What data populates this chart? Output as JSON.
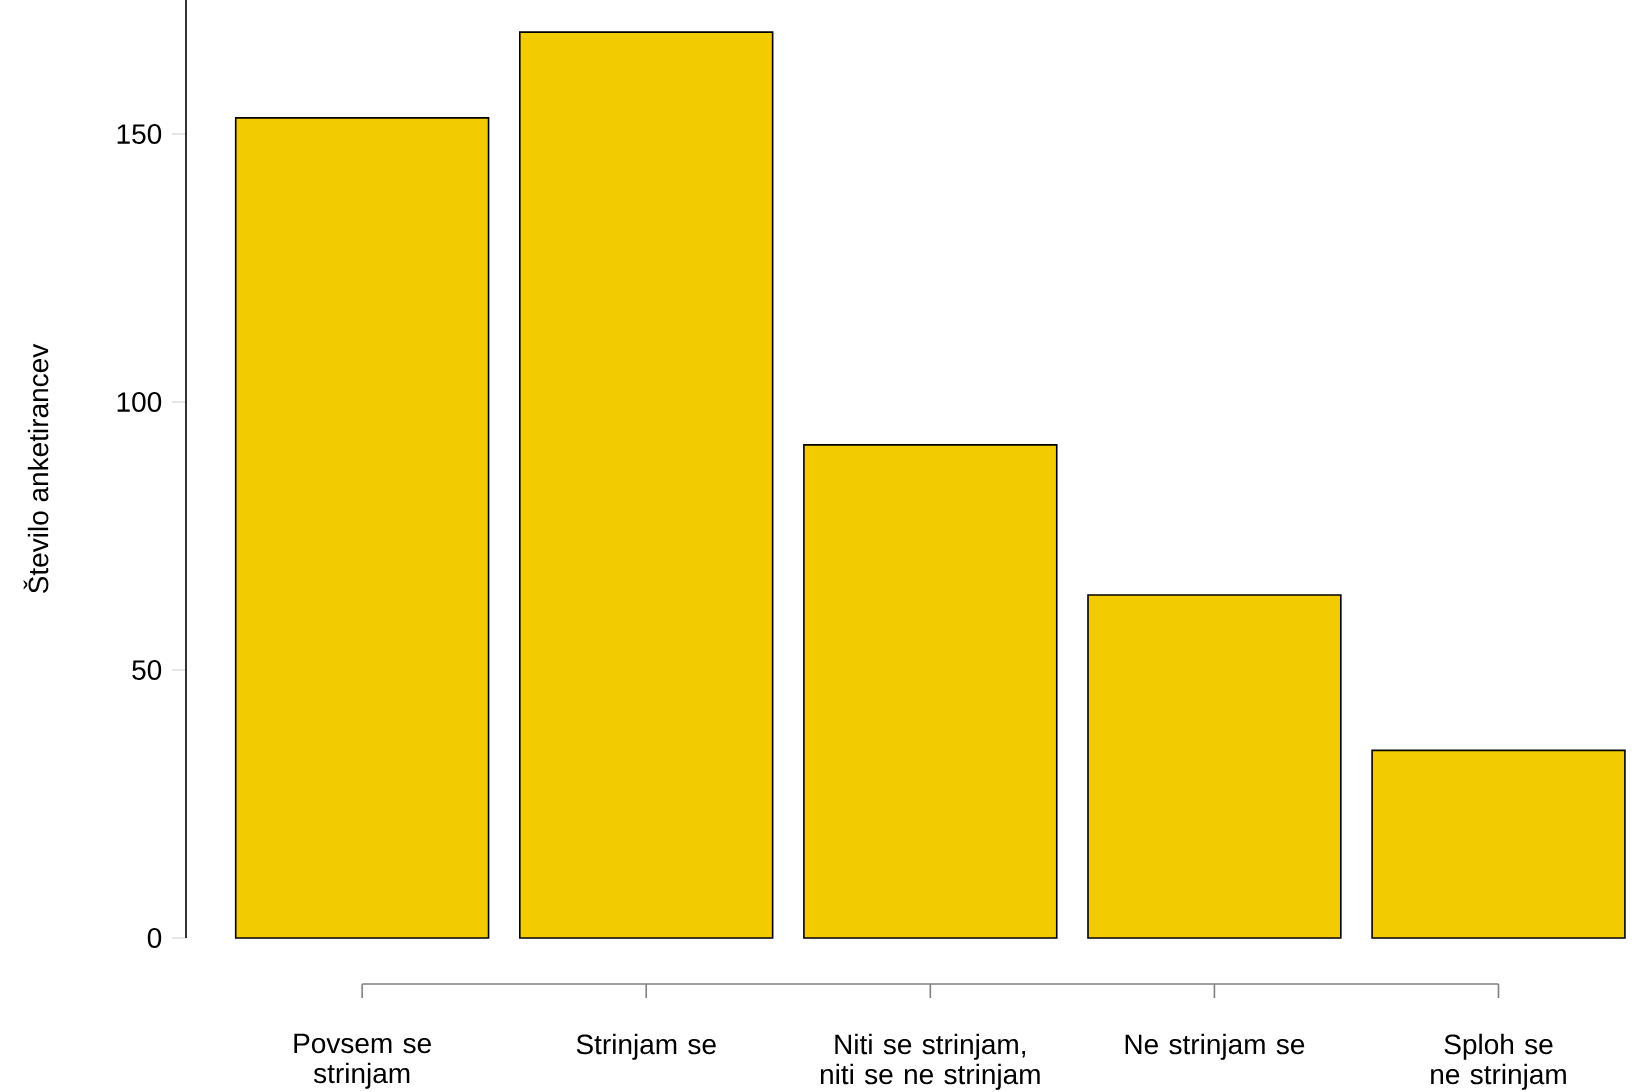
{
  "chart_data": {
    "type": "bar",
    "ylabel": "Število anketirancev",
    "categories": [
      "Povsem se strinjam",
      "Strinjam se",
      "Niti se strinjam, niti se ne strinjam",
      "Ne strinjam se",
      "Sploh se ne strinjam"
    ],
    "values": [
      153,
      169,
      92,
      64,
      35
    ],
    "color": "#f2cc00",
    "ylim": [
      0,
      175
    ],
    "yticks": [
      0,
      50,
      100,
      150
    ]
  }
}
